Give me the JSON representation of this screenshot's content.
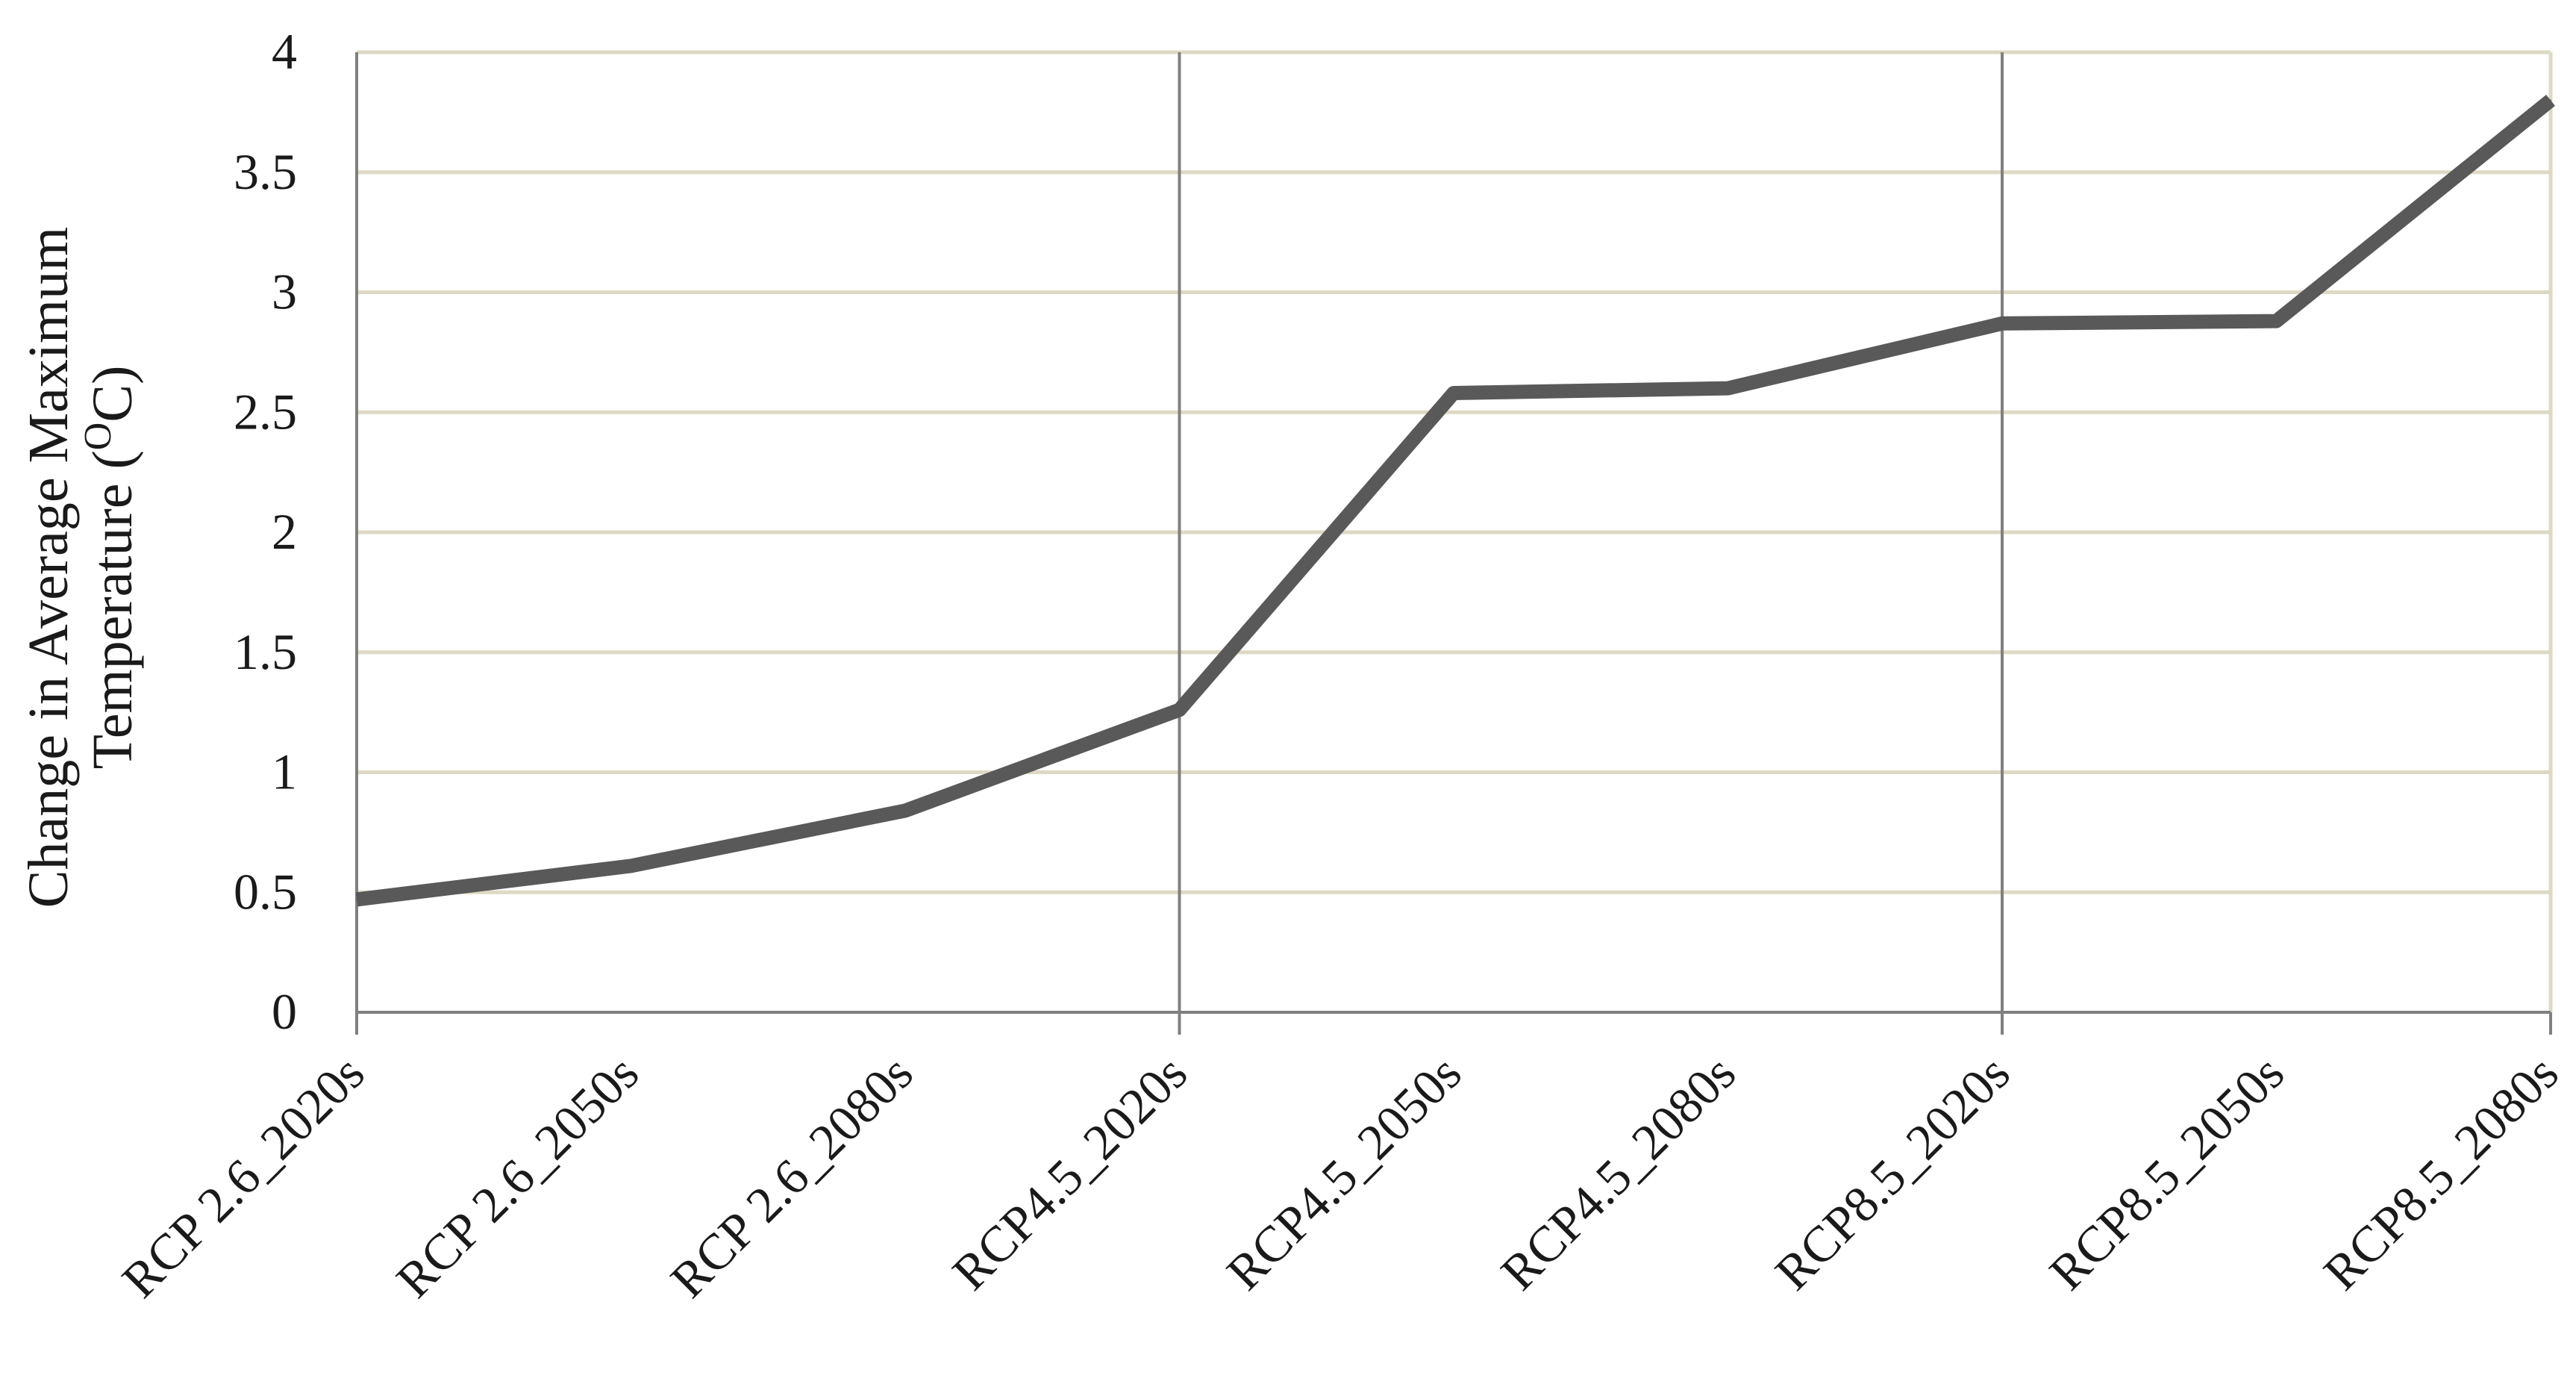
{
  "chart_data": {
    "type": "line",
    "categories": [
      "RCP 2.6_2020s",
      "RCP 2.6_2050s",
      "RCP 2.6_2080s",
      "RCP4.5_2020s",
      "RCP4.5_2050s",
      "RCP4.5_2080s",
      "RCP8.5_2020s",
      "RCP8.5_2050s",
      "RCP8.5_2080s"
    ],
    "series": [
      {
        "values": [
          0.47,
          0.61,
          0.84,
          1.26,
          2.58,
          2.6,
          2.87,
          2.88,
          3.8
        ]
      }
    ],
    "ylabel_line1": "Change in Average Maximum",
    "ylabel_line2_prefix": "Temperature (",
    "ylabel_sup": "O",
    "ylabel_line2_suffix": "C)",
    "ylim": [
      0,
      4
    ],
    "yticks": [
      "0",
      "0.5",
      "1",
      "1.5",
      "2",
      "2.5",
      "3",
      "3.5",
      "4"
    ],
    "grid": true,
    "colors": {
      "line": "#595959",
      "grid": "#ddd9c3",
      "vgrid": "#808080",
      "axis": "#808080"
    }
  }
}
